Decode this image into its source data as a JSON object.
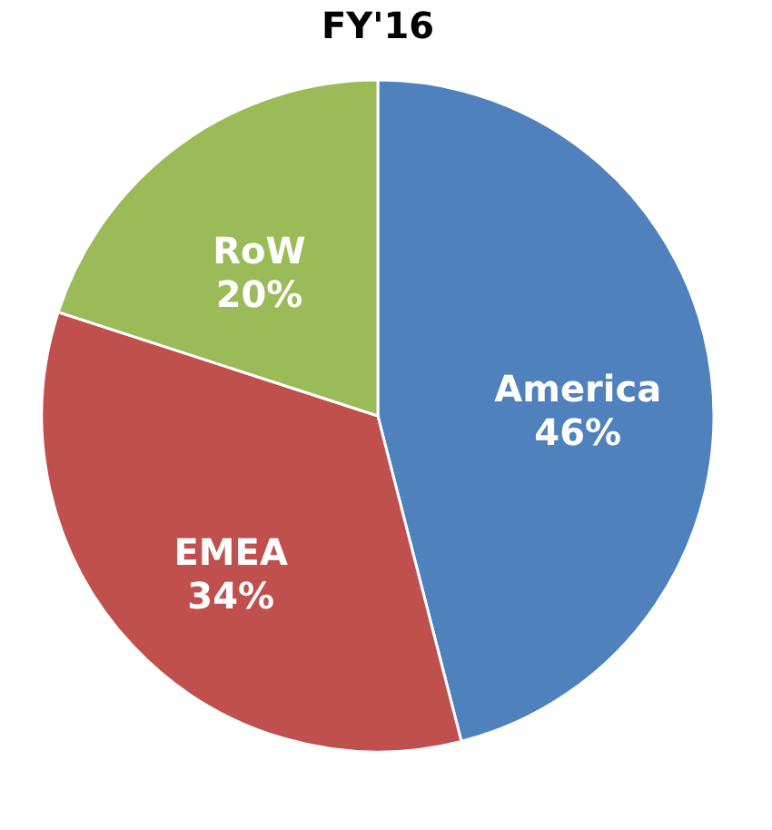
{
  "chart_data": {
    "type": "pie",
    "title": "FY'16",
    "categories": [
      "America",
      "EMEA",
      "RoW"
    ],
    "values": [
      46,
      34,
      20
    ],
    "value_labels": [
      "46%",
      "34%",
      "20%"
    ],
    "colors": [
      "#4f81bd",
      "#c0504d",
      "#9bbb59"
    ],
    "legend": false
  }
}
